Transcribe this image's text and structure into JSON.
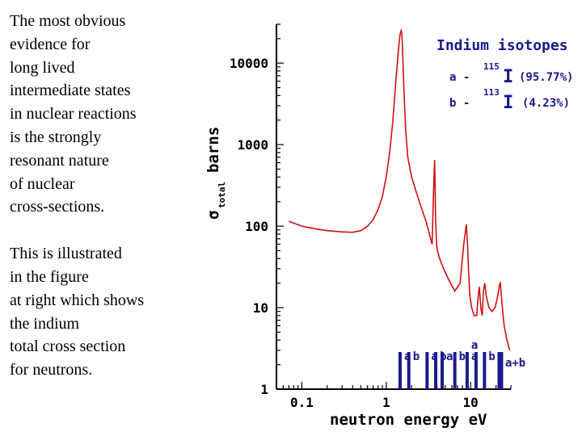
{
  "description": {
    "paragraph1": [
      "The most obvious",
      "evidence for",
      "long lived",
      "intermediate states",
      "in nuclear reactions",
      "is the strongly",
      "resonant nature",
      "of nuclear",
      "cross-sections."
    ],
    "paragraph2": [
      "This is illustrated",
      "in the figure",
      "at right which shows",
      "the indium",
      "total cross section",
      "for neutrons."
    ]
  },
  "chart_data": {
    "type": "line",
    "title": "Indium isotopes",
    "xlabel": "neutron energy eV",
    "ylabel_main": "σ",
    "ylabel_sub": "total",
    "ylabel_unit": "barns",
    "x_scale": "log",
    "y_scale": "log",
    "xlim": [
      0.05,
      30
    ],
    "ylim": [
      1,
      30000
    ],
    "x_ticks": [
      {
        "value": 0.1,
        "label": "0.1"
      },
      {
        "value": 1,
        "label": "1"
      },
      {
        "value": 10,
        "label": "10"
      }
    ],
    "y_ticks": [
      {
        "value": 1,
        "label": "1"
      },
      {
        "value": 10,
        "label": "10"
      },
      {
        "value": 100,
        "label": "100"
      },
      {
        "value": 1000,
        "label": "1000"
      },
      {
        "value": 10000,
        "label": "10000"
      }
    ],
    "grid": false,
    "series": [
      {
        "color": "#cc1111",
        "x": [
          0.07,
          0.1,
          0.15,
          0.2,
          0.3,
          0.4,
          0.5,
          0.6,
          0.7,
          0.8,
          0.9,
          1.0,
          1.1,
          1.2,
          1.3,
          1.4,
          1.45,
          1.5,
          1.53,
          1.56,
          1.6,
          1.65,
          1.7,
          1.8,
          2.0,
          2.3,
          2.6,
          3.0,
          3.3,
          3.5,
          3.65,
          3.75,
          3.85,
          3.95,
          4.05,
          4.3,
          4.8,
          5.5,
          6.5,
          7.5,
          8.3,
          8.9,
          9.2,
          9.5,
          9.8,
          10.3,
          11.0,
          11.8,
          12.3,
          12.7,
          13.2,
          13.7,
          14.2,
          14.7,
          15.3,
          16.5,
          18.0,
          19.5,
          21.0,
          22.0,
          22.5,
          23.0,
          24.0,
          25.0,
          27.0,
          29.0
        ],
        "y": [
          115,
          100,
          92,
          88,
          85,
          84,
          88,
          100,
          120,
          160,
          230,
          400,
          800,
          2000,
          6000,
          15000,
          22000,
          25000,
          23000,
          15000,
          7000,
          3000,
          1500,
          700,
          400,
          250,
          170,
          110,
          75,
          60,
          300,
          650,
          120,
          60,
          50,
          40,
          30,
          22,
          16,
          20,
          60,
          105,
          60,
          25,
          14,
          10,
          8,
          8,
          14,
          18,
          10,
          8,
          16,
          20,
          14,
          10,
          9,
          10,
          14,
          19,
          20,
          15,
          9,
          6,
          4,
          3
        ]
      }
    ],
    "legend": {
      "a": {
        "symbol": "I",
        "mass": "115",
        "abundance": "(95.77%)",
        "prefix": "a -"
      },
      "b": {
        "symbol": "I",
        "mass": "113",
        "abundance": "(4.23%)",
        "prefix": "b -"
      }
    },
    "resonance_markers": [
      {
        "x": 1.46,
        "label": "a"
      },
      {
        "x": 1.85,
        "label": "b"
      },
      {
        "x": 3.05,
        "label": "a"
      },
      {
        "x": 3.86,
        "label": "b"
      },
      {
        "x": 4.6,
        "label": "a"
      },
      {
        "x": 6.5,
        "label": "b"
      },
      {
        "x": 9.1,
        "label": "a"
      },
      {
        "x": 11.6,
        "label": "a"
      },
      {
        "x": 14.6,
        "label": "b"
      },
      {
        "x": 22.5,
        "label": "a+b"
      }
    ]
  }
}
